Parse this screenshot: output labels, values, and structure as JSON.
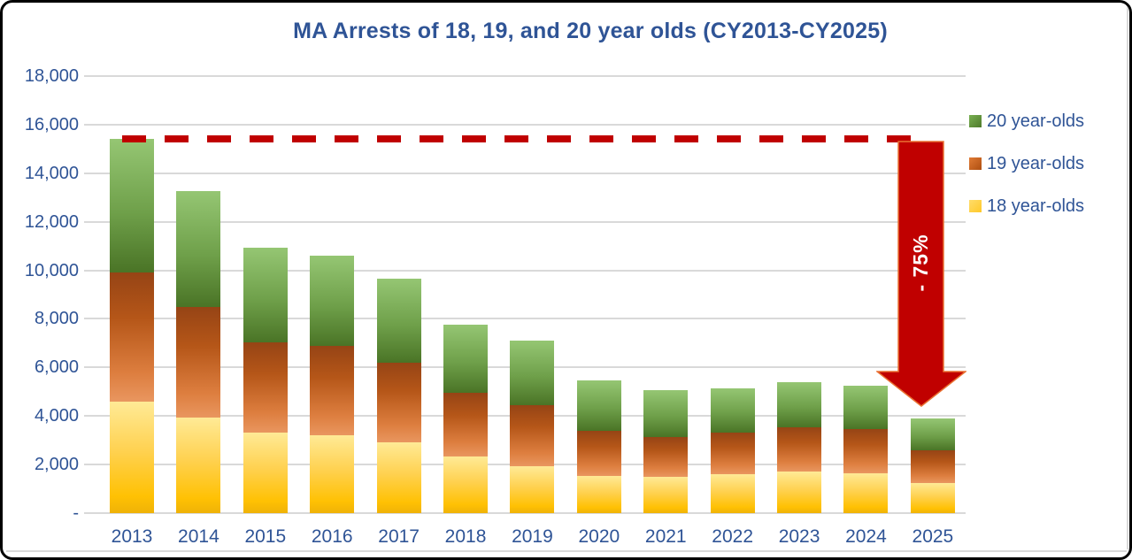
{
  "title": "MA Arrests of 18, 19, and 20 year olds (CY2013-CY2025)",
  "colors": {
    "text_blue": "#2F5496",
    "accent_red": "#C00000",
    "arrow_outline": "#E97132",
    "gridline": "#D9D9D9",
    "series_green": "#5E8F37",
    "series_orange": "#C25A1D",
    "series_yellow": "#FFC103"
  },
  "y_axis": {
    "ticks": [
      {
        "label": "18,000",
        "value": 18000
      },
      {
        "label": "16,000",
        "value": 16000
      },
      {
        "label": "14,000",
        "value": 14000
      },
      {
        "label": "12,000",
        "value": 12000
      },
      {
        "label": "10,000",
        "value": 10000
      },
      {
        "label": "8,000",
        "value": 8000
      },
      {
        "label": "6,000",
        "value": 6000
      },
      {
        "label": "4,000",
        "value": 4000
      },
      {
        "label": "2,000",
        "value": 2000
      },
      {
        "label": "-",
        "value": 0
      }
    ]
  },
  "legend": {
    "items": [
      {
        "label": "20 year-olds",
        "key": "green"
      },
      {
        "label": "19 year-olds",
        "key": "orange"
      },
      {
        "label": "18 year-olds",
        "key": "yellow"
      }
    ]
  },
  "annotations": {
    "arrow_label": "- 75%"
  },
  "chart_data": {
    "type": "bar",
    "stacked": true,
    "title": "MA Arrests of 18, 19, and 20 year olds (CY2013-CY2025)",
    "categories": [
      "2013",
      "2014",
      "2015",
      "2016",
      "2017",
      "2018",
      "2019",
      "2020",
      "2021",
      "2022",
      "2023",
      "2024",
      "2025"
    ],
    "series": [
      {
        "name": "18 year-olds",
        "key": "yellow",
        "values": [
          4600,
          3950,
          3300,
          3200,
          2900,
          2350,
          1950,
          1550,
          1500,
          1600,
          1700,
          1650,
          1250
        ]
      },
      {
        "name": "19 year-olds",
        "key": "orange",
        "values": [
          5300,
          4550,
          3750,
          3700,
          3300,
          2600,
          2500,
          1850,
          1650,
          1700,
          1850,
          1800,
          1350
        ]
      },
      {
        "name": "20 year-olds",
        "key": "green",
        "values": [
          5500,
          4750,
          3900,
          3700,
          3450,
          2800,
          2650,
          2050,
          1900,
          1850,
          1850,
          1800,
          1300
        ]
      }
    ],
    "totals": [
      15400,
      13250,
      10950,
      10600,
      9650,
      7750,
      7100,
      5450,
      5050,
      5150,
      5400,
      5250,
      3900
    ],
    "xlabel": "",
    "ylabel": "",
    "ylim": [
      0,
      18000
    ],
    "grid": true,
    "legend_position": "right",
    "annotations": {
      "dashed_reference_line_value": 15400,
      "arrow_label": "- 75%",
      "arrow_span": "from 2013 peak level down to 2025 total"
    }
  }
}
